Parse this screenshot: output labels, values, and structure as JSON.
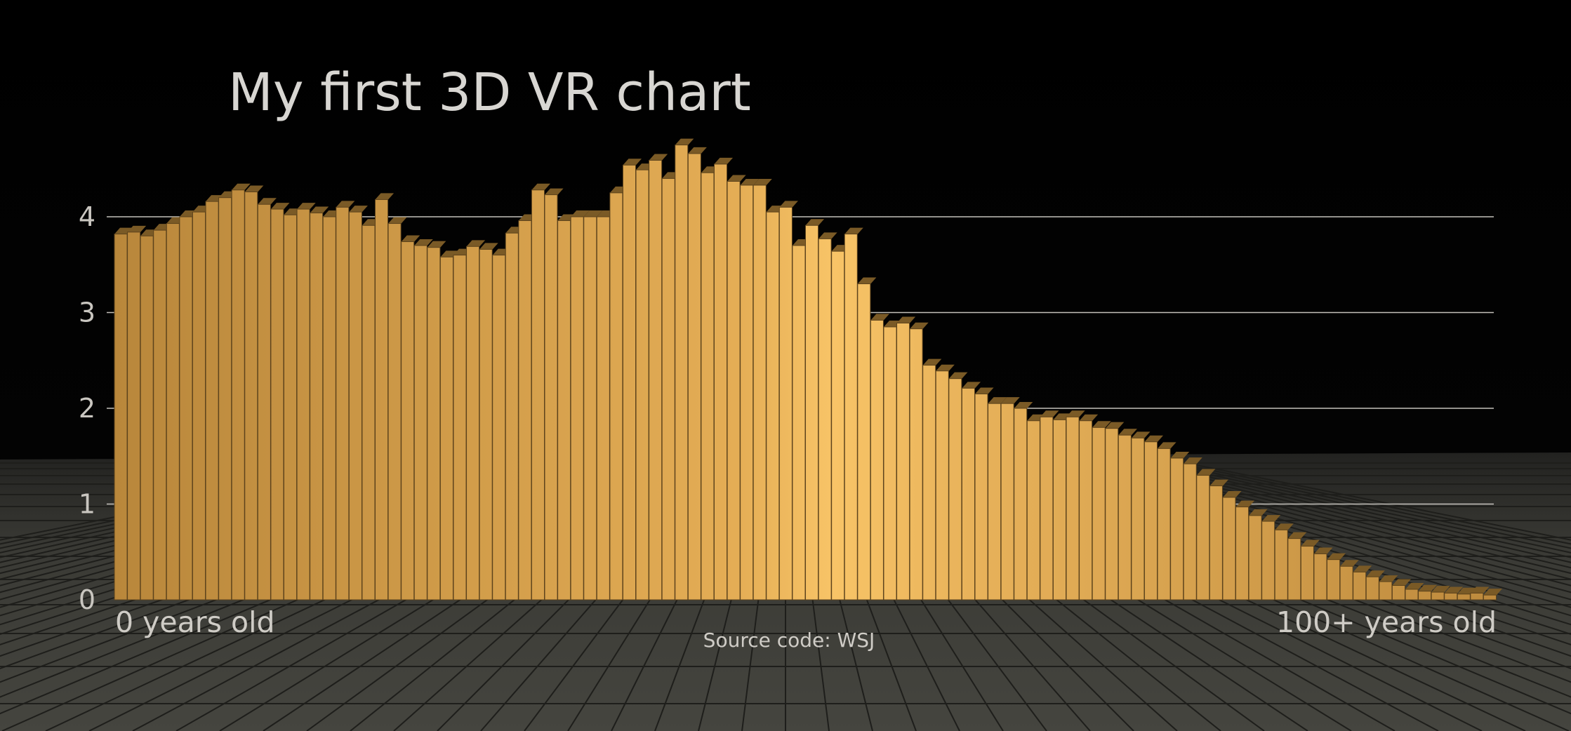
{
  "chart_data": {
    "type": "bar",
    "title": "My first 3D VR chart",
    "source": "Source code: WSJ",
    "x_start_label": "0 years old",
    "x_end_label": "100+ years old",
    "ylim": [
      0,
      4.8
    ],
    "yticks": [
      0,
      1,
      2,
      3,
      4
    ],
    "grid": true,
    "colors": {
      "bar": "#c9963f",
      "bar_highlight": "#f6c166",
      "background": "#000000",
      "floor": "#3a3a36"
    },
    "values": [
      3.82,
      3.84,
      3.8,
      3.86,
      3.93,
      4.0,
      4.05,
      4.16,
      4.2,
      4.28,
      4.26,
      4.13,
      4.08,
      4.02,
      4.08,
      4.04,
      4.0,
      4.1,
      4.05,
      3.91,
      4.18,
      3.93,
      3.74,
      3.7,
      3.68,
      3.58,
      3.6,
      3.69,
      3.66,
      3.6,
      3.83,
      3.96,
      4.28,
      4.23,
      3.96,
      4.0,
      4.0,
      4.0,
      4.25,
      4.54,
      4.49,
      4.59,
      4.4,
      4.75,
      4.66,
      4.46,
      4.55,
      4.37,
      4.33,
      4.33,
      4.05,
      4.1,
      3.7,
      3.91,
      3.77,
      3.64,
      3.82,
      3.3,
      2.92,
      2.85,
      2.89,
      2.83,
      2.45,
      2.39,
      2.31,
      2.21,
      2.15,
      2.05,
      2.05,
      2.0,
      1.87,
      1.91,
      1.88,
      1.91,
      1.87,
      1.8,
      1.79,
      1.72,
      1.69,
      1.65,
      1.58,
      1.48,
      1.42,
      1.3,
      1.19,
      1.07,
      0.97,
      0.88,
      0.82,
      0.73,
      0.64,
      0.56,
      0.48,
      0.42,
      0.35,
      0.29,
      0.24,
      0.19,
      0.15,
      0.11,
      0.09,
      0.08,
      0.07,
      0.06,
      0.07,
      0.05
    ]
  }
}
